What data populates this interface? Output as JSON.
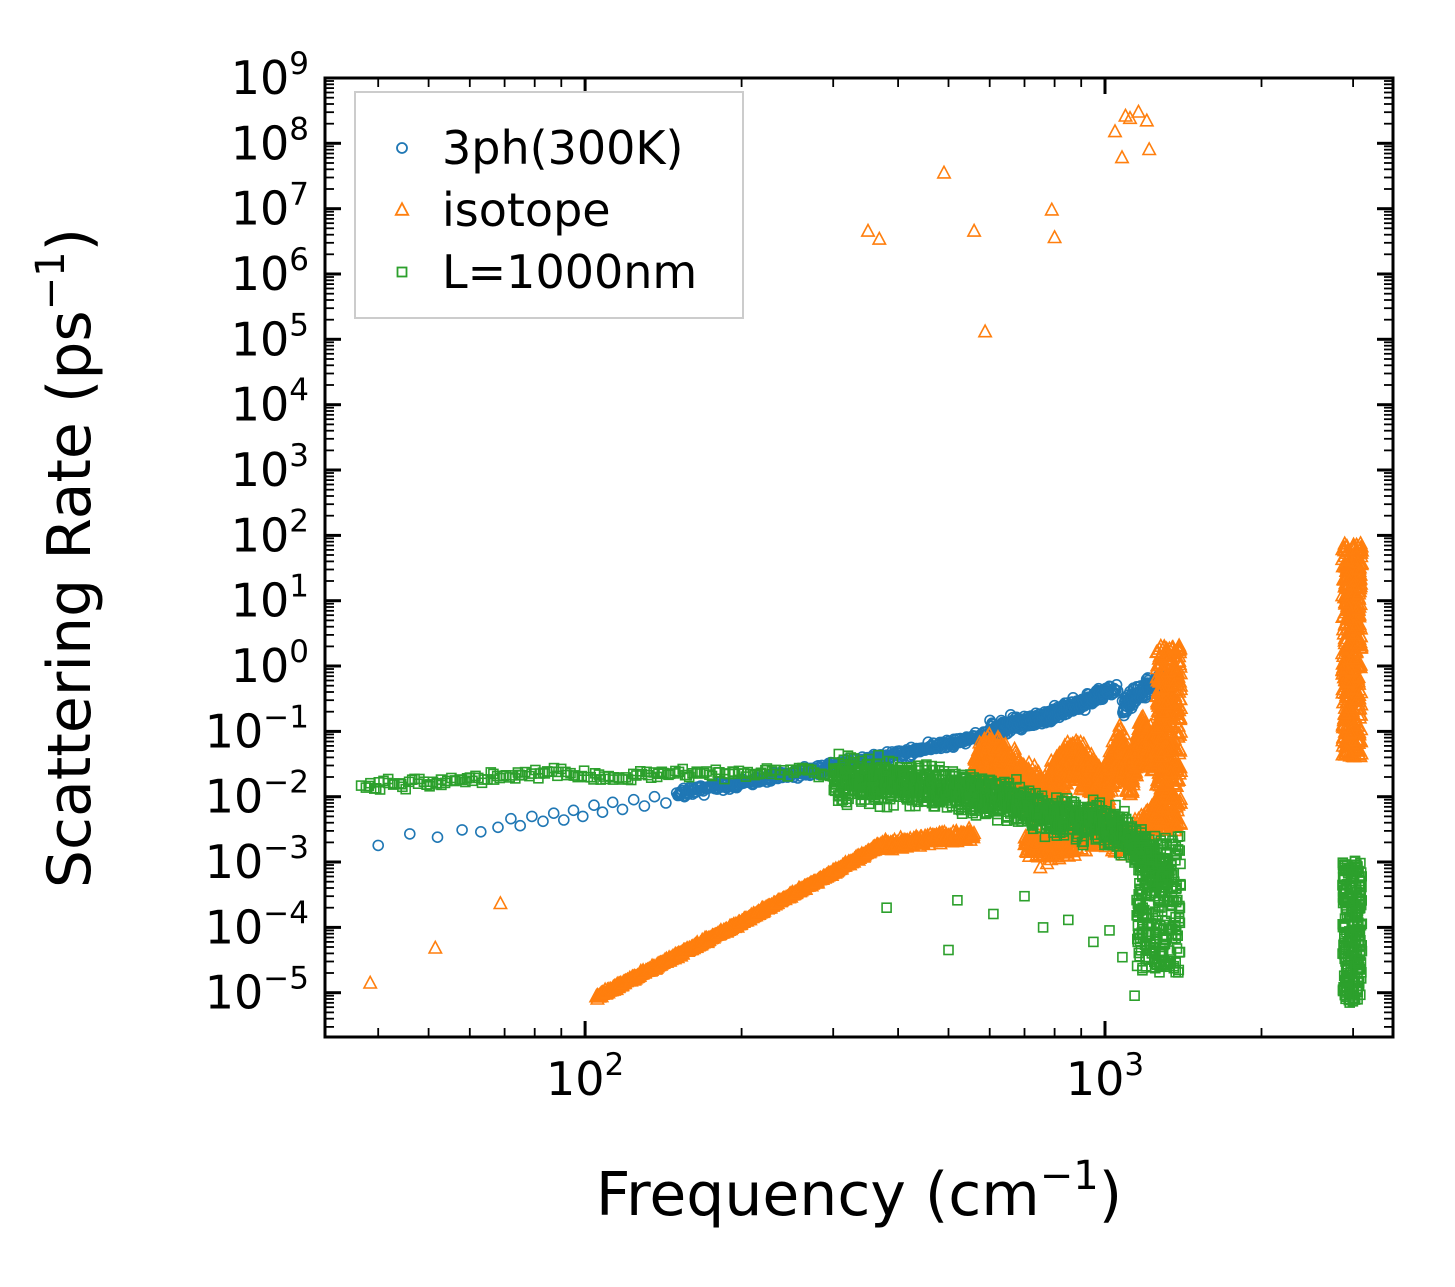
{
  "figure": {
    "title": "",
    "xlabel": {
      "pre": "Frequency (cm",
      "sup": "−1",
      "post": ")"
    },
    "ylabel": {
      "pre": "Scattering Rate (ps",
      "sup": "−1",
      "post": ")"
    }
  },
  "chart_data": {
    "type": "scatter",
    "title": "",
    "xlabel": "Frequency (cm⁻¹)",
    "ylabel": "Scattering Rate (ps⁻¹)",
    "grid": false,
    "x_axis": {
      "scale": "log",
      "min": 31.6,
      "max": 3580,
      "major_ticks": [
        {
          "value": 100,
          "base": "10",
          "exp": "2"
        },
        {
          "value": 1000,
          "base": "10",
          "exp": "3"
        }
      ],
      "minor_ticks": true
    },
    "y_axis": {
      "scale": "log",
      "min": 2.1e-06,
      "max": 1000000000.0,
      "major_ticks": [
        {
          "value": 1000000000.0,
          "base": "10",
          "exp": "9"
        },
        {
          "value": 100000000.0,
          "base": "10",
          "exp": "8"
        },
        {
          "value": 10000000.0,
          "base": "10",
          "exp": "7"
        },
        {
          "value": 1000000.0,
          "base": "10",
          "exp": "6"
        },
        {
          "value": 100000.0,
          "base": "10",
          "exp": "5"
        },
        {
          "value": 10000.0,
          "base": "10",
          "exp": "4"
        },
        {
          "value": 1000.0,
          "base": "10",
          "exp": "3"
        },
        {
          "value": 100.0,
          "base": "10",
          "exp": "2"
        },
        {
          "value": 10.0,
          "base": "10",
          "exp": "1"
        },
        {
          "value": 1,
          "base": "10",
          "exp": "0"
        },
        {
          "value": 0.1,
          "base": "10",
          "exp": "−1"
        },
        {
          "value": 0.01,
          "base": "10",
          "exp": "−2"
        },
        {
          "value": 0.001,
          "base": "10",
          "exp": "−3"
        },
        {
          "value": 0.0001,
          "base": "10",
          "exp": "−4"
        },
        {
          "value": 1e-05,
          "base": "10",
          "exp": "−5"
        }
      ],
      "minor_ticks": true
    },
    "legend": {
      "position": "upper left",
      "entries": [
        {
          "label": "3ph(300K)",
          "marker": "circle",
          "color": "#1f77b4"
        },
        {
          "label": "isotope",
          "marker": "triangle",
          "color": "#ff7f0e"
        },
        {
          "label": "L=1000nm",
          "marker": "square",
          "color": "#2ca02c"
        }
      ]
    },
    "series": [
      {
        "name": "3ph(300K)",
        "marker": "circle",
        "color": "#1f77b4",
        "points": [
          [
            40,
            0.0018
          ],
          [
            46,
            0.0027
          ],
          [
            52,
            0.0024
          ],
          [
            58,
            0.0031
          ],
          [
            63,
            0.0029
          ],
          [
            68,
            0.0034
          ],
          [
            72,
            0.0046
          ],
          [
            75,
            0.0036
          ],
          [
            79,
            0.005
          ],
          [
            83,
            0.0042
          ],
          [
            87,
            0.0056
          ],
          [
            91,
            0.0044
          ],
          [
            95,
            0.0062
          ],
          [
            99,
            0.005
          ],
          [
            104,
            0.0074
          ],
          [
            108,
            0.0058
          ],
          [
            113,
            0.0082
          ],
          [
            118,
            0.0064
          ],
          [
            124,
            0.009
          ],
          [
            130,
            0.0072
          ],
          [
            136,
            0.01
          ],
          [
            143,
            0.008
          ]
        ],
        "bands": [
          {
            "path": [
              [
                150,
                0.011
              ],
              [
                250,
                0.022
              ],
              [
                400,
                0.045
              ],
              [
                600,
                0.09
              ],
              [
                800,
                0.17
              ],
              [
                1000,
                0.38
              ],
              [
                1060,
                0.45
              ]
            ],
            "n": 550,
            "jitter": 0.1
          },
          {
            "path": [
              [
                600,
                0.12
              ],
              [
                750,
                0.16
              ],
              [
                900,
                0.28
              ],
              [
                1010,
                0.42
              ]
            ],
            "n": 220,
            "jitter": 0.16
          },
          {
            "path": [
              [
                1080,
                0.22
              ],
              [
                1150,
                0.38
              ],
              [
                1250,
                0.55
              ],
              [
                1330,
                0.75
              ]
            ],
            "n": 130,
            "jitter": 0.2
          }
        ],
        "columns": []
      },
      {
        "name": "isotope",
        "marker": "triangle",
        "color": "#ff7f0e",
        "points": [
          [
            38.6,
            1.4e-05
          ],
          [
            51.5,
            4.8e-05
          ],
          [
            68.7,
            0.00023
          ],
          [
            350,
            4500000.0
          ],
          [
            368,
            3400000.0
          ],
          [
            490,
            35000000.0
          ],
          [
            560,
            4500000.0
          ],
          [
            588,
            130000.0
          ],
          [
            790,
            9500000.0
          ],
          [
            800,
            3600000.0
          ],
          [
            1045,
            150000000.0
          ],
          [
            1078,
            60000000.0
          ],
          [
            1095,
            260000000.0
          ],
          [
            1117,
            240000000.0
          ],
          [
            1160,
            300000000.0
          ],
          [
            1203,
            220000000.0
          ],
          [
            1216,
            80000000.0
          ],
          [
            2950,
            0.06
          ],
          [
            2990,
            0.09
          ],
          [
            3010,
            0.13
          ],
          [
            2960,
            0.2
          ],
          [
            3040,
            0.3
          ]
        ],
        "bands": [
          {
            "path": [
              [
                105,
                8.5e-06
              ],
              [
                200,
                0.00012
              ],
              [
                300,
                0.0007
              ],
              [
                365,
                0.0017
              ]
            ],
            "n": 650,
            "jitter": 0.05
          },
          {
            "path": [
              [
                365,
                0.0017
              ],
              [
                460,
                0.0022
              ],
              [
                560,
                0.0026
              ]
            ],
            "n": 220,
            "jitter": 0.12
          },
          {
            "path": [
              [
                560,
                0.025
              ],
              [
                600,
                0.045
              ],
              [
                650,
                0.028
              ],
              [
                700,
                0.014
              ],
              [
                760,
                0.009
              ],
              [
                820,
                0.025
              ],
              [
                880,
                0.04
              ],
              [
                940,
                0.02
              ],
              [
                1000,
                0.012
              ],
              [
                1060,
                0.055
              ],
              [
                1120,
                0.022
              ],
              [
                1180,
                0.09
              ],
              [
                1240,
                0.04
              ],
              [
                1320,
                0.35
              ]
            ],
            "n": 1700,
            "jitter": 0.5
          },
          {
            "path": [
              [
                700,
                0.002
              ],
              [
                800,
                0.0015
              ],
              [
                900,
                0.0025
              ],
              [
                1000,
                0.003
              ],
              [
                1100,
                0.002
              ],
              [
                1200,
                0.004
              ],
              [
                1300,
                0.006
              ]
            ],
            "n": 450,
            "jitter": 0.35
          }
        ],
        "columns": [
          {
            "x": [
              1255,
              1400
            ],
            "y": [
              0.003,
              2.1
            ],
            "n": 420
          },
          {
            "x": [
              2860,
              3120
            ],
            "y": [
              0.04,
              75
            ],
            "n": 460
          }
        ]
      },
      {
        "name": "L=1000nm",
        "marker": "square",
        "color": "#2ca02c",
        "points": [
          [
            380,
            0.0002
          ],
          [
            500,
            4.5e-05
          ],
          [
            520,
            0.00026
          ],
          [
            610,
            0.00016
          ],
          [
            700,
            0.0003
          ],
          [
            760,
            0.0001
          ],
          [
            850,
            0.00013
          ],
          [
            950,
            6e-05
          ],
          [
            1020,
            9e-05
          ],
          [
            1080,
            3.5e-05
          ],
          [
            1140,
            9e-06
          ],
          [
            1180,
            2.2e-05
          ],
          [
            1230,
            4e-05
          ]
        ],
        "bands": [
          {
            "path": [
              [
                37,
                0.015
              ],
              [
                60,
                0.018
              ],
              [
                80,
                0.023
              ],
              [
                110,
                0.019
              ],
              [
                150,
                0.024
              ],
              [
                200,
                0.021
              ],
              [
                250,
                0.025
              ],
              [
                300,
                0.022
              ]
            ],
            "n": 170,
            "jitter": 0.11
          },
          {
            "path": [
              [
                300,
                0.02
              ],
              [
                400,
                0.016
              ],
              [
                500,
                0.013
              ],
              [
                600,
                0.01
              ],
              [
                700,
                0.007
              ],
              [
                800,
                0.005
              ],
              [
                900,
                0.0045
              ],
              [
                1000,
                0.0035
              ],
              [
                1100,
                0.0025
              ],
              [
                1200,
                0.0012
              ],
              [
                1320,
                0.0006
              ]
            ],
            "n": 1200,
            "jitter": 0.45
          }
        ],
        "columns": [
          {
            "x": [
              1150,
              1400
            ],
            "y": [
              2e-05,
              0.0025
            ],
            "n": 260
          },
          {
            "x": [
              2860,
              3120
            ],
            "y": [
              7e-06,
              0.00105
            ],
            "n": 240
          }
        ]
      }
    ]
  }
}
